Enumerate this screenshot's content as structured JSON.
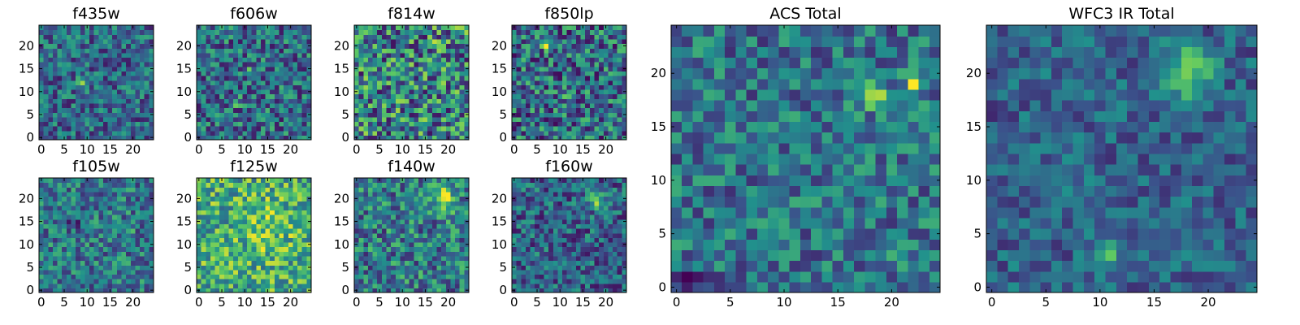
{
  "figure": {
    "colormap": "viridis",
    "colormap_stops": [
      "#440154",
      "#3b528b",
      "#21918c",
      "#5ec962",
      "#fde725"
    ]
  },
  "chart_data": [
    {
      "type": "heatmap",
      "title": "f435w",
      "nx": 25,
      "ny": 25,
      "xticks": [
        0,
        5,
        10,
        15,
        20
      ],
      "yticks": [
        0,
        5,
        10,
        15,
        20
      ],
      "xlim": [
        0,
        25
      ],
      "ylim": [
        0,
        25
      ],
      "origin": "lower",
      "base_level": 0.34,
      "variation": 0.26,
      "seed": 11,
      "peaks": [
        {
          "x": 9,
          "y": 12,
          "amp": 0.55,
          "sigma": 0.6
        }
      ]
    },
    {
      "type": "heatmap",
      "title": "f606w",
      "nx": 25,
      "ny": 25,
      "xticks": [
        0,
        5,
        10,
        15,
        20
      ],
      "yticks": [
        0,
        5,
        10,
        15,
        20
      ],
      "xlim": [
        0,
        25
      ],
      "ylim": [
        0,
        25
      ],
      "origin": "lower",
      "base_level": 0.36,
      "variation": 0.3,
      "seed": 23,
      "peaks": [
        {
          "x": 8,
          "y": 8,
          "amp": 0.5,
          "sigma": 0.6
        },
        {
          "x": 11,
          "y": 15,
          "amp": 0.3,
          "sigma": 0.6
        }
      ]
    },
    {
      "type": "heatmap",
      "title": "f814w",
      "nx": 25,
      "ny": 25,
      "xticks": [
        0,
        5,
        10,
        15,
        20
      ],
      "yticks": [
        0,
        5,
        10,
        15,
        20
      ],
      "xlim": [
        0,
        25
      ],
      "ylim": [
        0,
        25
      ],
      "origin": "lower",
      "base_level": 0.45,
      "variation": 0.4,
      "seed": 37,
      "peaks": [
        {
          "x": 18,
          "y": 20,
          "amp": 0.3,
          "sigma": 0.8
        },
        {
          "x": 23,
          "y": 23,
          "amp": 0.35,
          "sigma": 0.6
        }
      ]
    },
    {
      "type": "heatmap",
      "title": "f850lp",
      "nx": 25,
      "ny": 25,
      "xticks": [
        0,
        5,
        10,
        15,
        20
      ],
      "yticks": [
        0,
        5,
        10,
        15,
        20
      ],
      "xlim": [
        0,
        25
      ],
      "ylim": [
        0,
        25
      ],
      "origin": "lower",
      "base_level": 0.36,
      "variation": 0.34,
      "seed": 41,
      "peaks": [
        {
          "x": 7,
          "y": 20,
          "amp": 0.5,
          "sigma": 0.6
        },
        {
          "x": 12,
          "y": 9,
          "amp": 0.5,
          "sigma": 0.6
        }
      ]
    },
    {
      "type": "heatmap",
      "title": "f105w",
      "nx": 25,
      "ny": 25,
      "xticks": [
        0,
        5,
        10,
        15,
        20
      ],
      "yticks": [
        0,
        5,
        10,
        15,
        20
      ],
      "xlim": [
        0,
        25
      ],
      "ylim": [
        0,
        25
      ],
      "origin": "lower",
      "base_level": 0.4,
      "variation": 0.26,
      "seed": 53,
      "peaks": [
        {
          "x": 19,
          "y": 13,
          "amp": 0.45,
          "sigma": 0.7
        },
        {
          "x": 7,
          "y": 15,
          "amp": -0.25,
          "sigma": 1.2
        }
      ]
    },
    {
      "type": "heatmap",
      "title": "f125w",
      "nx": 25,
      "ny": 25,
      "xticks": [
        0,
        5,
        10,
        15,
        20
      ],
      "yticks": [
        0,
        5,
        10,
        15,
        20
      ],
      "xlim": [
        0,
        25
      ],
      "ylim": [
        0,
        25
      ],
      "origin": "lower",
      "base_level": 0.62,
      "variation": 0.3,
      "seed": 67,
      "peaks": [
        {
          "x": 15,
          "y": 14,
          "amp": 0.15,
          "sigma": 4.0
        }
      ]
    },
    {
      "type": "heatmap",
      "title": "f140w",
      "nx": 25,
      "ny": 25,
      "xticks": [
        0,
        5,
        10,
        15,
        20
      ],
      "yticks": [
        0,
        5,
        10,
        15,
        20
      ],
      "xlim": [
        0,
        25
      ],
      "ylim": [
        0,
        25
      ],
      "origin": "lower",
      "base_level": 0.42,
      "variation": 0.3,
      "seed": 79,
      "peaks": [
        {
          "x": 19,
          "y": 20,
          "amp": 0.4,
          "sigma": 2.0
        }
      ]
    },
    {
      "type": "heatmap",
      "title": "f160w",
      "nx": 25,
      "ny": 25,
      "xticks": [
        0,
        5,
        10,
        15,
        20
      ],
      "yticks": [
        0,
        5,
        10,
        15,
        20
      ],
      "xlim": [
        0,
        25
      ],
      "ylim": [
        0,
        25
      ],
      "origin": "lower",
      "base_level": 0.32,
      "variation": 0.26,
      "seed": 83,
      "peaks": [
        {
          "x": 18,
          "y": 20,
          "amp": 0.5,
          "sigma": 1.4
        }
      ]
    },
    {
      "type": "heatmap",
      "title": "ACS Total",
      "nx": 25,
      "ny": 25,
      "xticks": [
        0,
        5,
        10,
        15,
        20
      ],
      "yticks": [
        0,
        5,
        10,
        15,
        20
      ],
      "xlim": [
        0,
        25
      ],
      "ylim": [
        0,
        25
      ],
      "origin": "lower",
      "base_level": 0.38,
      "variation": 0.24,
      "seed": 97,
      "peaks": [
        {
          "x": 18,
          "y": 18,
          "amp": 0.45,
          "sigma": 1.0
        },
        {
          "x": 22,
          "y": 19,
          "amp": 0.5,
          "sigma": 0.6
        },
        {
          "x": 21,
          "y": 3,
          "amp": 0.3,
          "sigma": 0.6
        },
        {
          "x": 1,
          "y": 1,
          "amp": -0.35,
          "sigma": 0.6
        }
      ]
    },
    {
      "type": "heatmap",
      "title": "WFC3 IR Total",
      "nx": 25,
      "ny": 25,
      "xticks": [
        0,
        5,
        10,
        15,
        20
      ],
      "yticks": [
        0,
        5,
        10,
        15,
        20
      ],
      "xlim": [
        0,
        25
      ],
      "ylim": [
        0,
        25
      ],
      "origin": "lower",
      "base_level": 0.32,
      "variation": 0.18,
      "seed": 101,
      "peaks": [
        {
          "x": 18,
          "y": 20,
          "amp": 0.55,
          "sigma": 1.5
        },
        {
          "x": 11,
          "y": 3,
          "amp": 0.25,
          "sigma": 1.2
        },
        {
          "x": 6,
          "y": 4,
          "amp": -0.2,
          "sigma": 0.8
        },
        {
          "x": 1,
          "y": 15,
          "amp": -0.2,
          "sigma": 0.8
        }
      ]
    }
  ]
}
